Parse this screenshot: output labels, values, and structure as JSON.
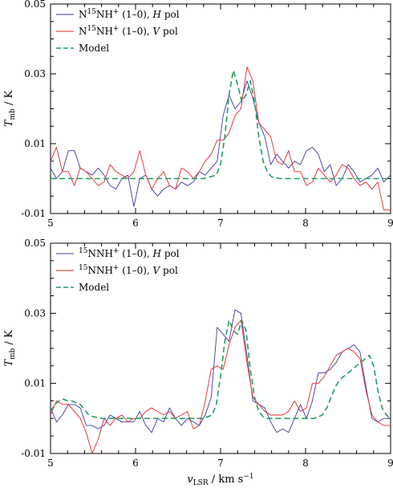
{
  "chart_data": [
    {
      "type": "line",
      "xlim": [
        5,
        9
      ],
      "ylim": [
        -0.01,
        0.05
      ],
      "xticks": [
        "5",
        "6",
        "7",
        "8",
        "9"
      ],
      "yticks": [
        "-0.01",
        "0.01",
        "0.03",
        "0.05"
      ],
      "ylabel": "T_mb / K",
      "legend": "top-left",
      "grid": false,
      "series": [
        {
          "name": "N15NH+ (1-0), H pol",
          "color": "#3b3b9a",
          "dash": "",
          "x": [
            5.0,
            5.07,
            5.14,
            5.21,
            5.28,
            5.35,
            5.42,
            5.49,
            5.56,
            5.63,
            5.7,
            5.77,
            5.84,
            5.91,
            5.98,
            6.05,
            6.12,
            6.19,
            6.26,
            6.33,
            6.4,
            6.47,
            6.54,
            6.61,
            6.68,
            6.75,
            6.82,
            6.89,
            6.96,
            7.03,
            7.1,
            7.17,
            7.24,
            7.31,
            7.38,
            7.45,
            7.52,
            7.59,
            7.66,
            7.73,
            7.8,
            7.87,
            7.94,
            8.01,
            8.08,
            8.15,
            8.22,
            8.29,
            8.36,
            8.43,
            8.5,
            8.57,
            8.64,
            8.71,
            8.78,
            8.85,
            8.92,
            9.0
          ],
          "y": [
            0.003,
            0.0,
            0.002,
            0.008,
            0.008,
            0.003,
            0.002,
            0.001,
            0.003,
            0.001,
            -0.002,
            -0.003,
            0.0,
            0.001,
            -0.008,
            0.0,
            0.001,
            -0.003,
            -0.005,
            -0.003,
            -0.002,
            -0.003,
            -0.001,
            -0.002,
            -0.001,
            0.002,
            0.001,
            0.003,
            0.005,
            0.018,
            0.024,
            0.02,
            0.022,
            0.028,
            0.023,
            0.016,
            0.012,
            0.004,
            0.007,
            0.005,
            0.003,
            0.005,
            0.004,
            0.008,
            0.009,
            0.007,
            0.002,
            0.004,
            -0.002,
            0.0,
            0.004,
            0.002,
            -0.001,
            0.0,
            0.001,
            0.003,
            -0.001,
            0.001
          ]
        },
        {
          "name": "N15NH+ (1-0), V pol",
          "color": "#e0282e",
          "dash": "",
          "x": [
            5.0,
            5.07,
            5.14,
            5.21,
            5.28,
            5.35,
            5.42,
            5.49,
            5.56,
            5.63,
            5.7,
            5.77,
            5.84,
            5.91,
            5.98,
            6.05,
            6.12,
            6.19,
            6.26,
            6.33,
            6.4,
            6.47,
            6.54,
            6.61,
            6.68,
            6.75,
            6.82,
            6.89,
            6.96,
            7.03,
            7.1,
            7.17,
            7.24,
            7.31,
            7.38,
            7.45,
            7.52,
            7.59,
            7.66,
            7.73,
            7.8,
            7.87,
            7.94,
            8.01,
            8.08,
            8.15,
            8.22,
            8.29,
            8.36,
            8.43,
            8.5,
            8.57,
            8.64,
            8.71,
            8.78,
            8.85,
            8.92,
            9.0
          ],
          "y": [
            0.005,
            0.009,
            0.002,
            0.002,
            -0.002,
            0.003,
            0.002,
            0.0,
            -0.002,
            -0.001,
            0.004,
            0.002,
            0.001,
            0.0,
            0.002,
            0.008,
            0.001,
            -0.003,
            0.0,
            0.002,
            -0.002,
            -0.003,
            0.003,
            0.002,
            0.0,
            0.002,
            0.005,
            0.007,
            0.011,
            0.011,
            0.013,
            0.018,
            0.02,
            0.032,
            0.028,
            0.016,
            0.014,
            0.012,
            0.005,
            0.004,
            0.008,
            0.002,
            0.002,
            -0.002,
            -0.001,
            0.003,
            0.001,
            -0.001,
            0.001,
            0.004,
            0.003,
            0.0,
            -0.002,
            -0.001,
            -0.003,
            -0.001,
            -0.009,
            -0.009
          ]
        },
        {
          "name": "Model",
          "color": "#1e9e5a",
          "dash": "7,4",
          "x": [
            5.0,
            6.8,
            6.95,
            7.0,
            7.05,
            7.1,
            7.15,
            7.2,
            7.25,
            7.3,
            7.35,
            7.4,
            7.45,
            7.5,
            7.55,
            7.6,
            7.7,
            9.0
          ],
          "y": [
            0.0,
            0.0,
            0.001,
            0.004,
            0.012,
            0.024,
            0.031,
            0.027,
            0.022,
            0.024,
            0.028,
            0.022,
            0.012,
            0.005,
            0.002,
            0.0005,
            0.0,
            0.0
          ]
        }
      ]
    },
    {
      "type": "line",
      "xlim": [
        5,
        9
      ],
      "ylim": [
        -0.01,
        0.05
      ],
      "xticks": [
        "5",
        "6",
        "7",
        "8",
        "9"
      ],
      "yticks": [
        "-0.01",
        "0.01",
        "0.03",
        "0.05"
      ],
      "xlabel": "v_LSR / km s^-1",
      "ylabel": "T_mb / K",
      "legend": "top-left",
      "grid": false,
      "series": [
        {
          "name": "15NNH+ (1-0), H pol",
          "color": "#3b3b9a",
          "dash": "",
          "x": [
            5.0,
            5.07,
            5.14,
            5.21,
            5.28,
            5.35,
            5.42,
            5.49,
            5.56,
            5.63,
            5.7,
            5.77,
            5.84,
            5.91,
            5.98,
            6.05,
            6.12,
            6.19,
            6.26,
            6.33,
            6.4,
            6.47,
            6.54,
            6.61,
            6.68,
            6.75,
            6.82,
            6.89,
            6.96,
            7.03,
            7.1,
            7.17,
            7.24,
            7.31,
            7.38,
            7.45,
            7.52,
            7.59,
            7.66,
            7.73,
            7.8,
            7.87,
            7.94,
            8.01,
            8.08,
            8.15,
            8.22,
            8.29,
            8.36,
            8.43,
            8.5,
            8.57,
            8.64,
            8.71,
            8.78,
            8.85,
            8.92,
            9.0
          ],
          "y": [
            0.003,
            -0.001,
            0.001,
            0.004,
            0.004,
            0.003,
            -0.002,
            -0.002,
            -0.003,
            -0.002,
            0.001,
            0.0,
            -0.001,
            -0.001,
            -0.001,
            0.002,
            -0.002,
            -0.004,
            0.0,
            -0.001,
            0.003,
            0.0,
            -0.002,
            0.0,
            -0.001,
            -0.002,
            0.001,
            0.006,
            0.026,
            0.024,
            0.022,
            0.031,
            0.03,
            0.018,
            0.005,
            0.004,
            0.003,
            -0.001,
            -0.004,
            -0.003,
            -0.004,
            0.0,
            0.004,
            0.0,
            0.005,
            0.013,
            0.013,
            0.014,
            0.016,
            0.019,
            0.02,
            0.021,
            0.019,
            0.009,
            0.0,
            -0.001,
            0.0,
            0.0
          ]
        },
        {
          "name": "15NNH+ (1-0), V pol",
          "color": "#e0282e",
          "dash": "",
          "x": [
            5.0,
            5.07,
            5.14,
            5.21,
            5.28,
            5.35,
            5.42,
            5.49,
            5.56,
            5.63,
            5.7,
            5.77,
            5.84,
            5.91,
            5.98,
            6.05,
            6.12,
            6.19,
            6.26,
            6.33,
            6.4,
            6.47,
            6.54,
            6.61,
            6.68,
            6.75,
            6.82,
            6.89,
            6.96,
            7.03,
            7.1,
            7.17,
            7.24,
            7.31,
            7.38,
            7.45,
            7.52,
            7.59,
            7.66,
            7.73,
            7.8,
            7.87,
            7.94,
            8.01,
            8.08,
            8.15,
            8.22,
            8.29,
            8.36,
            8.43,
            8.5,
            8.57,
            8.64,
            8.71,
            8.78,
            8.85,
            8.92,
            9.0
          ],
          "y": [
            0.001,
            0.005,
            0.004,
            0.004,
            0.002,
            0.0,
            -0.004,
            -0.01,
            -0.006,
            0.0,
            -0.002,
            0.0,
            0.001,
            -0.001,
            0.0,
            0.0,
            0.002,
            0.003,
            0.002,
            0.001,
            0.002,
            0.0,
            0.001,
            0.002,
            -0.003,
            -0.002,
            0.005,
            0.014,
            0.015,
            0.014,
            0.021,
            0.026,
            0.028,
            0.016,
            0.006,
            0.004,
            0.002,
            0.001,
            0.001,
            0.001,
            0.002,
            0.005,
            0.002,
            0.003,
            0.01,
            0.01,
            0.012,
            0.015,
            0.018,
            0.019,
            0.02,
            0.019,
            0.017,
            0.008,
            0.001,
            -0.001,
            -0.002,
            -0.002
          ]
        },
        {
          "name": "Model",
          "color": "#1e9e5a",
          "dash": "7,4",
          "x": [
            5.0,
            5.05,
            5.1,
            5.15,
            5.2,
            5.25,
            5.3,
            5.35,
            5.4,
            5.45,
            5.5,
            5.6,
            5.7,
            6.8,
            6.9,
            6.95,
            7.0,
            7.05,
            7.1,
            7.15,
            7.2,
            7.25,
            7.3,
            7.35,
            7.4,
            7.45,
            7.5,
            7.55,
            7.6,
            7.7,
            8.1,
            8.2,
            8.25,
            8.3,
            8.35,
            8.4,
            8.45,
            8.5,
            8.55,
            8.6,
            8.65,
            8.7,
            8.75,
            8.8,
            8.85,
            8.9,
            8.95,
            9.0
          ],
          "y": [
            0.002,
            0.004,
            0.005,
            0.0055,
            0.005,
            0.005,
            0.0045,
            0.004,
            0.0025,
            0.001,
            0.0005,
            0.0,
            0.0,
            0.0,
            0.001,
            0.004,
            0.012,
            0.022,
            0.028,
            0.025,
            0.024,
            0.028,
            0.025,
            0.014,
            0.006,
            0.002,
            0.0005,
            0.0,
            0.0,
            0.0,
            0.0,
            0.001,
            0.003,
            0.006,
            0.009,
            0.011,
            0.012,
            0.013,
            0.014,
            0.015,
            0.016,
            0.017,
            0.018,
            0.015,
            0.008,
            0.003,
            0.001,
            0.0
          ]
        }
      ]
    }
  ],
  "panels": [
    {
      "legend": [
        {
          "pre": "N",
          "sup": "15",
          "mid": "NH",
          "sup2": "+",
          "tail": " (1–0), ",
          "ital": "H",
          "end": " pol"
        },
        {
          "pre": "N",
          "sup": "15",
          "mid": "NH",
          "sup2": "+",
          "tail": " (1–0), ",
          "ital": "V",
          "end": " pol"
        },
        {
          "pre": "Model",
          "sup": "",
          "mid": "",
          "sup2": "",
          "tail": "",
          "ital": "",
          "end": ""
        }
      ]
    },
    {
      "legend": [
        {
          "pre": "",
          "sup": "15",
          "mid": "NNH",
          "sup2": "+",
          "tail": " (1–0), ",
          "ital": "H",
          "end": " pol"
        },
        {
          "pre": "",
          "sup": "15",
          "mid": "NNH",
          "sup2": "+",
          "tail": " (1–0), ",
          "ital": "V",
          "end": " pol"
        },
        {
          "pre": "Model",
          "sup": "",
          "mid": "",
          "sup2": "",
          "tail": "",
          "ital": "",
          "end": ""
        }
      ]
    }
  ],
  "ylabel": {
    "main": "T",
    "sub": "mb",
    "rest": " / K"
  },
  "xlabel": {
    "main": "v",
    "sub": "LSR",
    "rest": " / km s",
    "sup": "−1"
  }
}
